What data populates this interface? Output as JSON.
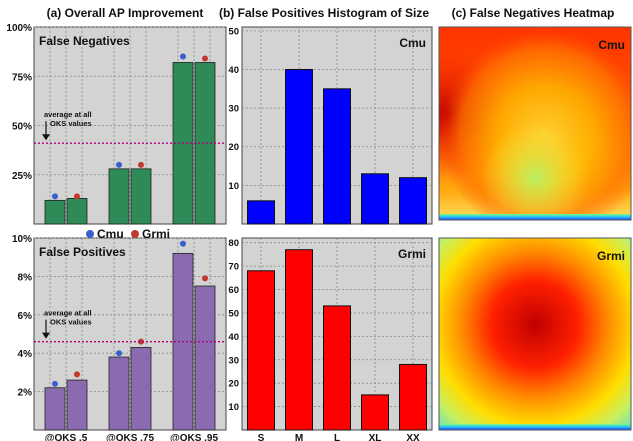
{
  "headers": {
    "a": "(a) Overall AP Improvement",
    "b": "(b) False Positives Histogram of Size",
    "c": "(c) False Negatives Heatmap"
  },
  "legend": [
    {
      "name": "Cmu",
      "color": "#3a5fcd"
    },
    {
      "name": "Grmi",
      "color": "#c0392b"
    }
  ],
  "chart_data": [
    {
      "type": "bar",
      "title": "False Negatives",
      "categories": [
        "@OKS .5",
        "@OKS .75",
        "@OKS .95"
      ],
      "series": [
        {
          "name": "Cmu",
          "values": [
            12,
            28,
            82
          ],
          "marker": [
            14,
            30,
            85
          ]
        },
        {
          "name": "Grmi",
          "values": [
            13,
            28,
            82
          ],
          "marker": [
            14,
            30,
            84
          ]
        }
      ],
      "yticks": [
        "25%",
        "50%",
        "75%",
        "100%"
      ],
      "ytick_values": [
        25,
        50,
        75,
        100
      ],
      "ylim": [
        0,
        100
      ],
      "average_line": 41,
      "annotation": [
        "average at all",
        "OKS values"
      ],
      "bar_color": "#2e8b57",
      "grid": true
    },
    {
      "type": "bar",
      "title": "False Positives",
      "categories": [
        "@OKS .5",
        "@OKS .75",
        "@OKS .95"
      ],
      "series": [
        {
          "name": "Cmu",
          "values": [
            2.2,
            3.8,
            9.2
          ],
          "marker": [
            2.4,
            4.0,
            9.7
          ]
        },
        {
          "name": "Grmi",
          "values": [
            2.6,
            4.3,
            7.5
          ],
          "marker": [
            2.9,
            4.6,
            7.9
          ]
        }
      ],
      "yticks": [
        "2%",
        "4%",
        "6%",
        "8%",
        "10%"
      ],
      "ytick_values": [
        2,
        4,
        6,
        8,
        10
      ],
      "ylim": [
        0,
        10
      ],
      "average_line": 4.6,
      "annotation": [
        "average at all",
        "OKS values"
      ],
      "bar_color": "#8a6bb0",
      "grid": true
    },
    {
      "type": "bar",
      "label": "Cmu",
      "categories": [
        "S",
        "M",
        "L",
        "XL",
        "XX"
      ],
      "values": [
        6,
        40,
        35,
        13,
        12
      ],
      "yticks": [
        10,
        20,
        30,
        40,
        50
      ],
      "ylim": [
        0,
        51
      ],
      "bar_color": "#0000ff",
      "grid": true
    },
    {
      "type": "bar",
      "label": "Grmi",
      "categories": [
        "S",
        "M",
        "L",
        "XL",
        "XX"
      ],
      "values": [
        68,
        77,
        53,
        15,
        28
      ],
      "yticks": [
        10,
        20,
        30,
        40,
        50,
        60,
        70,
        80
      ],
      "ylim": [
        0,
        82
      ],
      "bar_color": "#ff0000",
      "grid": true
    },
    {
      "type": "heatmap",
      "label": "Cmu",
      "hot_regions": "outer edges and left side, cooler center and bottom",
      "colormap": "jet"
    },
    {
      "type": "heatmap",
      "label": "Grmi",
      "hot_regions": "center",
      "colormap": "jet"
    }
  ]
}
